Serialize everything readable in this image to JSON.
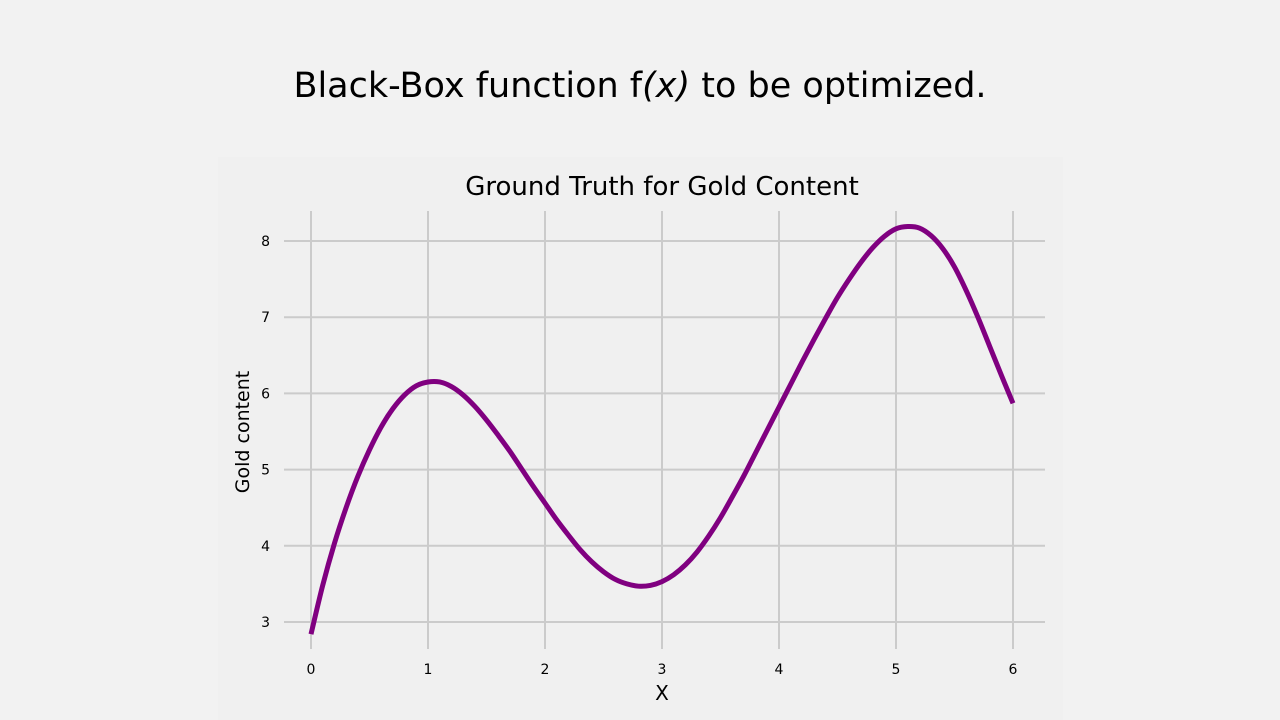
{
  "slide": {
    "title_prefix": "Black-Box function f",
    "title_func_arg": "(x)",
    "title_suffix": " to be optimized."
  },
  "colors": {
    "background": "#f2f2f2",
    "plot_background": "#f0f0f0",
    "grid": "#cbcbcb",
    "line": "#800080",
    "text": "#000000"
  },
  "chart_data": {
    "type": "line",
    "title": "Ground Truth for Gold Content",
    "xlabel": "X",
    "ylabel": "Gold content",
    "xlim": [
      -0.25,
      6.25
    ],
    "ylim": [
      2.6,
      8.4
    ],
    "xticks": [
      0,
      1,
      2,
      3,
      4,
      5,
      6
    ],
    "yticks": [
      3,
      4,
      5,
      6,
      7,
      8
    ],
    "grid": true,
    "series": [
      {
        "color": "#800080",
        "x": [
          0,
          0.1,
          0.2,
          0.3,
          0.4,
          0.5,
          0.6,
          0.7,
          0.8,
          0.9,
          1.0,
          1.1,
          1.2,
          1.3,
          1.4,
          1.5,
          1.6,
          1.7,
          1.8,
          1.9,
          2.0,
          2.1,
          2.2,
          2.3,
          2.4,
          2.5,
          2.6,
          2.7,
          2.8,
          2.9,
          3.0,
          3.1,
          3.2,
          3.3,
          3.4,
          3.5,
          3.6,
          3.7,
          3.8,
          3.9,
          4.0,
          4.1,
          4.2,
          4.3,
          4.4,
          4.5,
          4.6,
          4.7,
          4.8,
          4.9,
          5.0,
          5.1,
          5.2,
          5.3,
          5.4,
          5.5,
          5.6,
          5.7,
          5.8,
          5.9,
          6.0
        ],
        "y": [
          2.84,
          3.48,
          4.03,
          4.5,
          4.91,
          5.26,
          5.56,
          5.8,
          5.98,
          6.1,
          6.15,
          6.15,
          6.09,
          5.98,
          5.83,
          5.65,
          5.45,
          5.24,
          5.01,
          4.78,
          4.56,
          4.34,
          4.14,
          3.95,
          3.79,
          3.66,
          3.56,
          3.5,
          3.47,
          3.48,
          3.53,
          3.62,
          3.75,
          3.92,
          4.13,
          4.37,
          4.64,
          4.92,
          5.22,
          5.52,
          5.82,
          6.12,
          6.42,
          6.71,
          6.99,
          7.26,
          7.5,
          7.72,
          7.91,
          8.06,
          8.16,
          8.19,
          8.17,
          8.07,
          7.9,
          7.66,
          7.35,
          7.0,
          6.62,
          6.24,
          5.87
        ]
      }
    ]
  }
}
